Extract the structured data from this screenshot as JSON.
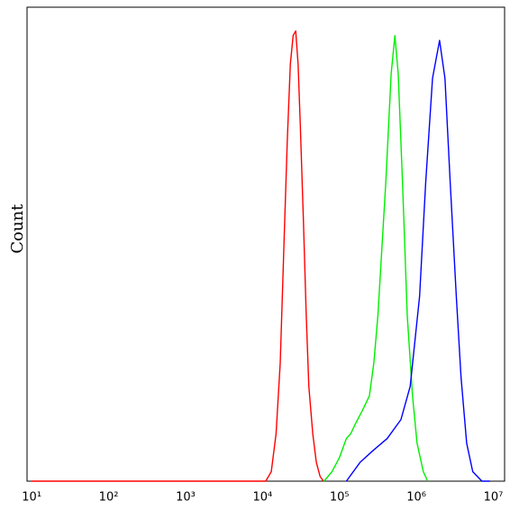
{
  "chart_data": {
    "type": "line",
    "y_label": "Count",
    "xscale": "log",
    "xlim": [
      8.7,
      14000000
    ],
    "ylim": [
      0,
      1
    ],
    "xticks": [
      {
        "value": 10,
        "label": "10¹"
      },
      {
        "value": 100,
        "label": "10²"
      },
      {
        "value": 1000,
        "label": "10³"
      },
      {
        "value": 10000,
        "label": "10⁴"
      },
      {
        "value": 100000,
        "label": "10⁵"
      },
      {
        "value": 1000000,
        "label": "10⁶"
      },
      {
        "value": 10000000,
        "label": "10⁷"
      }
    ],
    "series": [
      {
        "color": "#ff0000",
        "x": [
          10,
          11000,
          13000,
          15000,
          17000,
          19000,
          21000,
          23000,
          25000,
          27000,
          29000,
          31000,
          34000,
          37000,
          40000,
          45000,
          50000,
          56000,
          62000
        ],
        "values": [
          0,
          0,
          0.02,
          0.1,
          0.25,
          0.5,
          0.72,
          0.88,
          0.94,
          0.95,
          0.88,
          0.75,
          0.55,
          0.35,
          0.2,
          0.1,
          0.04,
          0.01,
          0
        ]
      },
      {
        "color": "#00ee00",
        "x": [
          63000,
          80000,
          100000,
          123000,
          140000,
          160000,
          200000,
          245000,
          280000,
          316000,
          400000,
          470000,
          525000,
          580000,
          660000,
          760000,
          890000,
          1020000,
          1230000,
          1400000
        ],
        "values": [
          0,
          0.02,
          0.05,
          0.09,
          0.1,
          0.12,
          0.15,
          0.18,
          0.25,
          0.35,
          0.63,
          0.86,
          0.94,
          0.86,
          0.63,
          0.35,
          0.18,
          0.08,
          0.02,
          0
        ]
      },
      {
        "color": "#0000ff",
        "x": [
          123000,
          186000,
          275000,
          417000,
          630000,
          830000,
          1100000,
          1320000,
          1620000,
          2000000,
          2350000,
          2750000,
          3300000,
          3800000,
          4500000,
          5400000,
          7100000,
          9000000
        ],
        "values": [
          0,
          0.04,
          0.065,
          0.09,
          0.13,
          0.2,
          0.39,
          0.63,
          0.85,
          0.93,
          0.85,
          0.63,
          0.39,
          0.22,
          0.08,
          0.02,
          0,
          0
        ]
      }
    ]
  }
}
